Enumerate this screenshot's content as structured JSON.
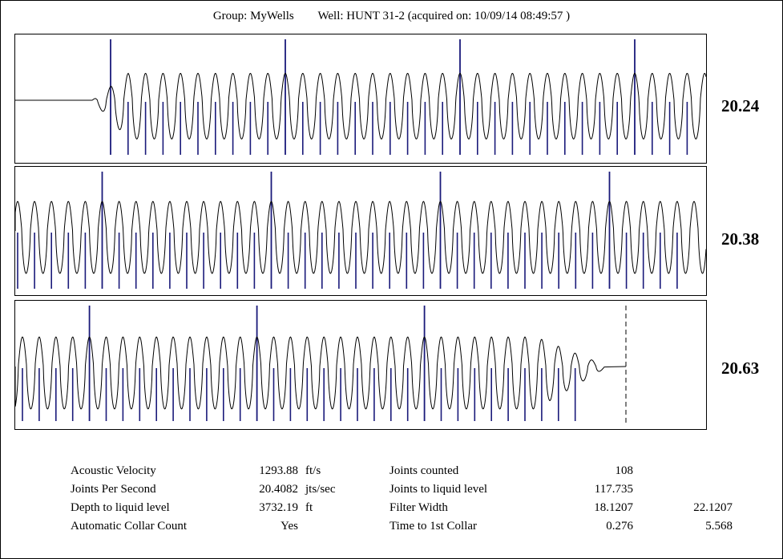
{
  "header": {
    "group": "Group: MyWells",
    "well": "Well: HUNT 31-2 (acquired on: 10/09/14 08:49:57 )"
  },
  "chart_data": [
    {
      "type": "line",
      "value_label": "20.24",
      "series": [
        {
          "values": "acoustic waveform – quiet baseline then ~34 oscillation cycles"
        }
      ],
      "collars": {
        "count": 34,
        "major_every": 10
      }
    },
    {
      "type": "line",
      "value_label": "20.38",
      "series": [
        {
          "values": "acoustic waveform – ~40 oscillation cycles"
        }
      ],
      "collars": {
        "count": 40,
        "major_every": 10
      }
    },
    {
      "type": "line",
      "value_label": "20.63",
      "series": [
        {
          "values": "acoustic waveform – ~34 cycles decaying to liquid level"
        }
      ],
      "collars": {
        "count": 34,
        "major_every": 10
      }
    }
  ],
  "stats": {
    "left": [
      {
        "label": "Acoustic Velocity",
        "value": "1293.88",
        "unit": "ft/s"
      },
      {
        "label": "Joints Per Second",
        "value": "20.4082",
        "unit": "jts/sec"
      },
      {
        "label": "Depth to liquid level",
        "value": "3732.19",
        "unit": "ft"
      },
      {
        "label": "Automatic Collar Count",
        "value": "Yes",
        "unit": ""
      }
    ],
    "right": [
      {
        "label": "Joints counted",
        "value": "108",
        "value2": ""
      },
      {
        "label": "Joints to liquid level",
        "value": "117.735",
        "value2": ""
      },
      {
        "label": "Filter Width",
        "value": "18.1207",
        "value2": "22.1207"
      },
      {
        "label": "Time to 1st Collar",
        "value": "0.276",
        "value2": "5.568"
      }
    ]
  },
  "colors": {
    "wave": "#000000",
    "collar": "#1a1a7a"
  }
}
